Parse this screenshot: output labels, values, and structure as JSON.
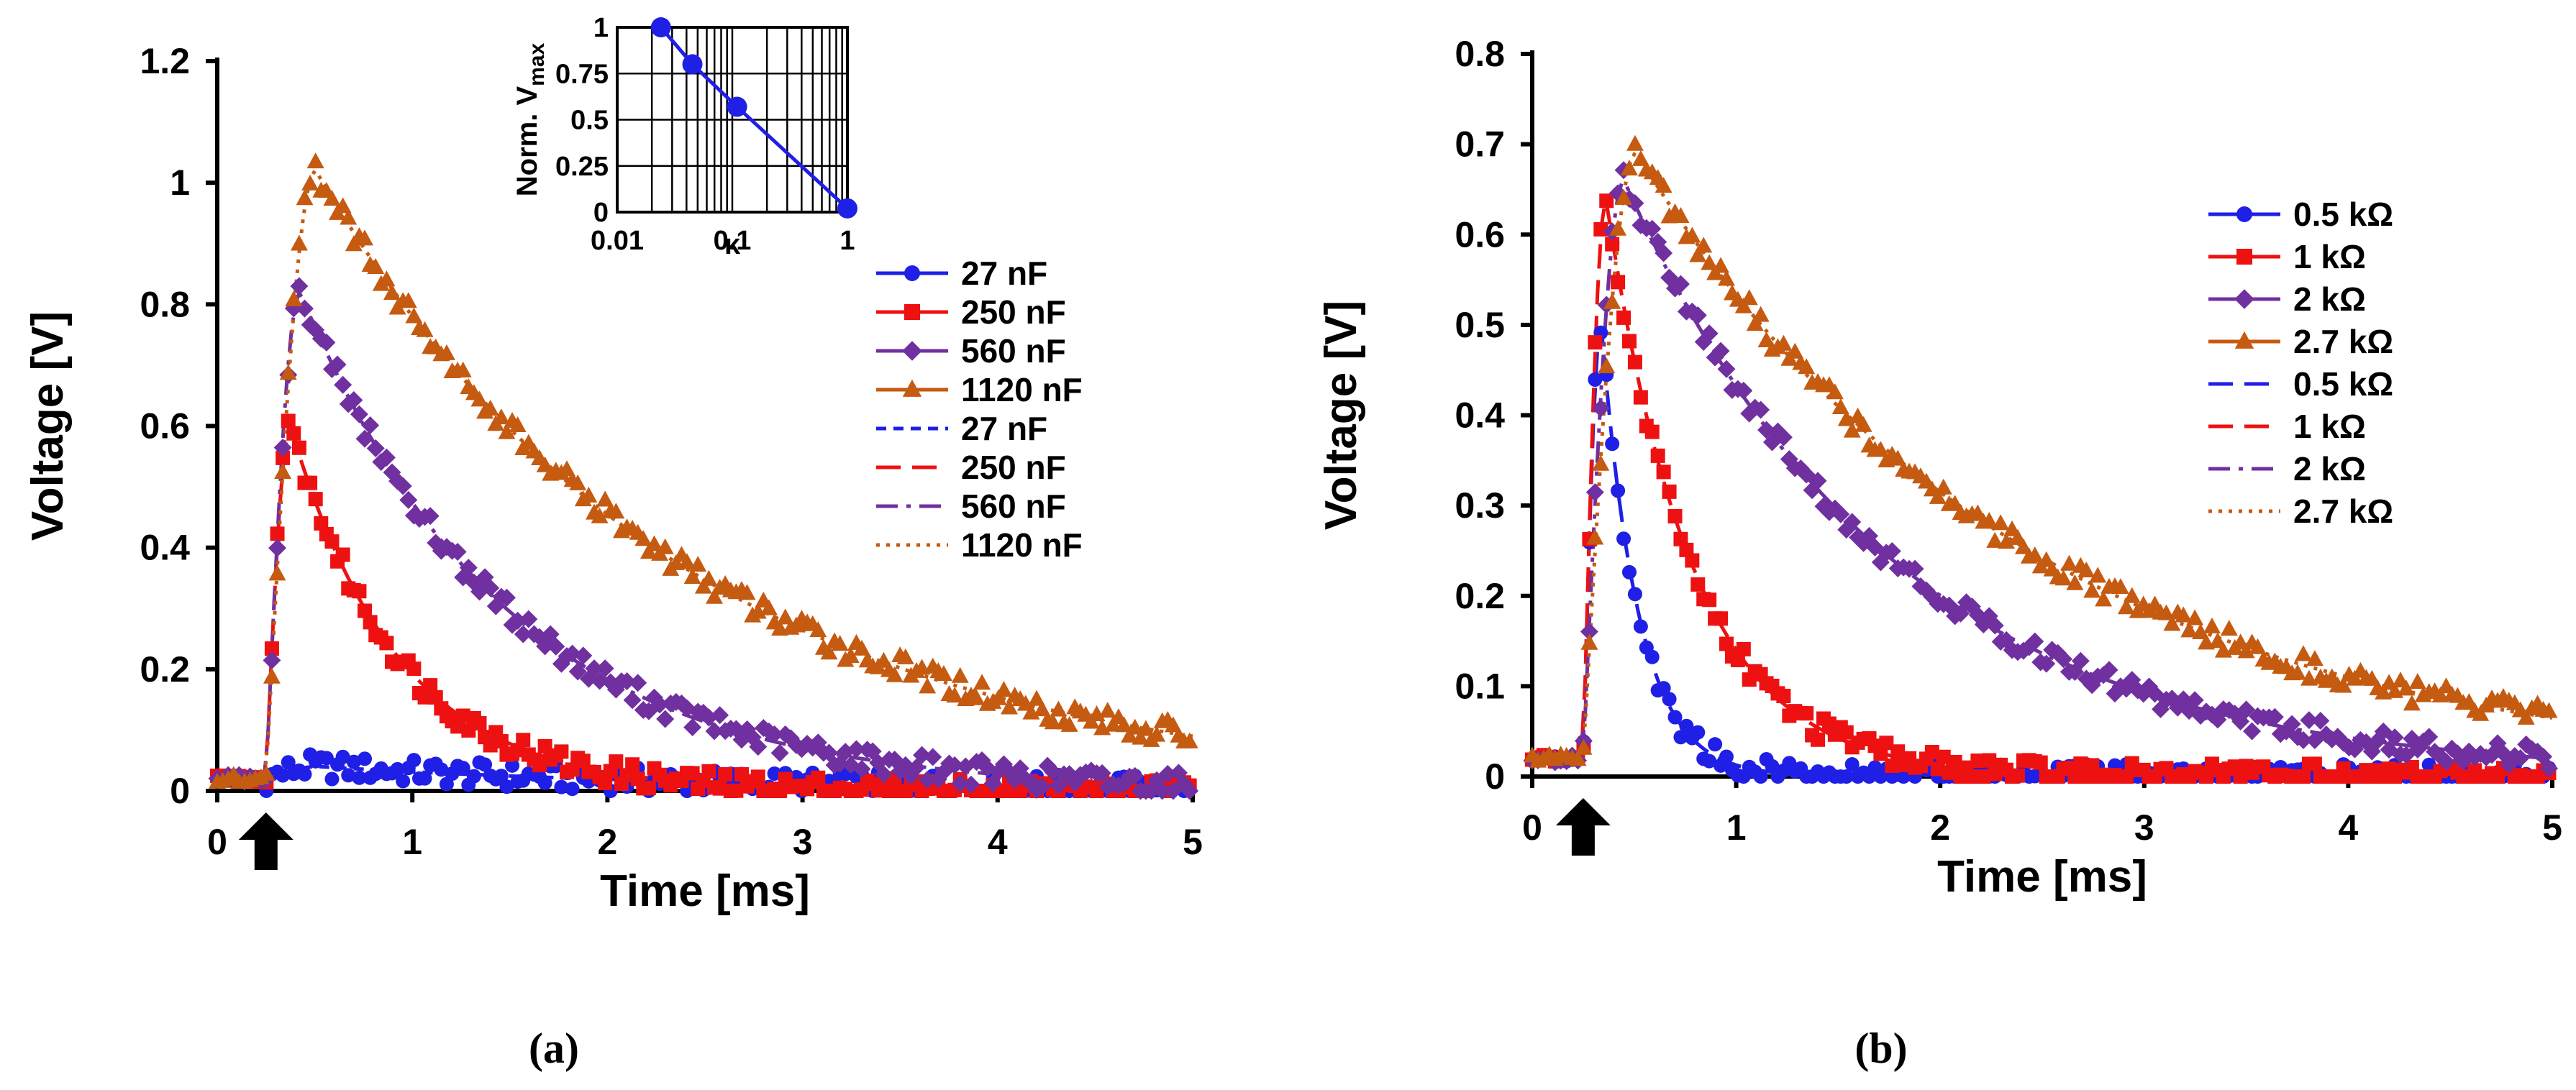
{
  "chart_data": [
    {
      "panel_label": "(a)",
      "type": "line",
      "xlabel": "Time [ms]",
      "ylabel": "Voltage [V]",
      "xlim": [
        0,
        5
      ],
      "ylim": [
        0,
        1.2
      ],
      "xticks": [
        "0",
        "1",
        "2",
        "3",
        "4",
        "5"
      ],
      "yticks": [
        "0",
        "0.2",
        "0.4",
        "0.6",
        "0.8",
        "1",
        "1.2"
      ],
      "trigger_time": 0.25,
      "legend_position": "right",
      "series": [
        {
          "name": "27 nF",
          "kind": "measured",
          "marker": "circle",
          "color": "#1f1fe6",
          "peak": 0.04,
          "tau": 2.0
        },
        {
          "name": "250 nF",
          "kind": "measured",
          "marker": "square",
          "color": "#ee1111",
          "peak": 0.6,
          "tau": 0.55
        },
        {
          "name": "560 nF",
          "kind": "measured",
          "marker": "diamond",
          "color": "#7030a0",
          "peak": 0.82,
          "tau": 1.05
        },
        {
          "name": "1120 nF",
          "kind": "measured",
          "marker": "triangle",
          "color": "#c55a11",
          "peak": 1.02,
          "tau": 1.85
        },
        {
          "name": "27 nF",
          "kind": "simulated",
          "dash": "short",
          "color": "#1f1fe6",
          "peak": 0.04,
          "tau": 2.0
        },
        {
          "name": "250 nF",
          "kind": "simulated",
          "dash": "long",
          "color": "#ee1111",
          "peak": 0.6,
          "tau": 0.55
        },
        {
          "name": "560 nF",
          "kind": "simulated",
          "dash": "dashdot",
          "color": "#7030a0",
          "peak": 0.82,
          "tau": 1.05
        },
        {
          "name": "1120 nF",
          "kind": "simulated",
          "dash": "dot",
          "color": "#c55a11",
          "peak": 1.02,
          "tau": 1.85
        }
      ],
      "inset": {
        "type": "line",
        "xscale": "log",
        "xlabel": "κ",
        "ylabel_main": "Norm. V",
        "ylabel_sub": "max",
        "xlim": [
          0.01,
          1
        ],
        "ylim": [
          0,
          1
        ],
        "xticks": [
          "0.01",
          "0.1",
          "1"
        ],
        "yticks": [
          "0",
          "0.25",
          "0.5",
          "0.75",
          "1"
        ],
        "color": "#1f1fe6",
        "x": [
          0.024,
          0.045,
          0.11,
          1.0
        ],
        "y": [
          1.0,
          0.8,
          0.57,
          0.02
        ]
      }
    },
    {
      "panel_label": "(b)",
      "type": "line",
      "xlabel": "Time  [ms]",
      "ylabel": "Voltage [V]",
      "xlim": [
        0,
        5
      ],
      "ylim": [
        0,
        0.8
      ],
      "xticks": [
        "0",
        "1",
        "2",
        "3",
        "4",
        "5"
      ],
      "yticks": [
        "0",
        "0.1",
        "0.2",
        "0.3",
        "0.4",
        "0.5",
        "0.6",
        "0.7",
        "0.8"
      ],
      "trigger_time": 0.25,
      "legend_position": "right",
      "series": [
        {
          "name": "0.5 kΩ",
          "kind": "measured",
          "marker": "circle",
          "color": "#1f1fe6",
          "peak": 0.5,
          "tau": 0.18
        },
        {
          "name": "1 kΩ",
          "kind": "measured",
          "marker": "square",
          "color": "#ee1111",
          "peak": 0.64,
          "tau": 0.42
        },
        {
          "name": "2 kΩ",
          "kind": "measured",
          "marker": "diamond",
          "color": "#7030a0",
          "peak": 0.66,
          "tau": 1.3
        },
        {
          "name": "2.7 kΩ",
          "kind": "measured",
          "marker": "triangle",
          "color": "#c55a11",
          "peak": 0.69,
          "tau": 1.9
        },
        {
          "name": "0.5 kΩ",
          "kind": "simulated",
          "dash": "long",
          "color": "#1f1fe6",
          "peak": 0.5,
          "tau": 0.18
        },
        {
          "name": "1 kΩ",
          "kind": "simulated",
          "dash": "long",
          "color": "#ee1111",
          "peak": 0.64,
          "tau": 0.42
        },
        {
          "name": "2 kΩ",
          "kind": "simulated",
          "dash": "dashdot",
          "color": "#7030a0",
          "peak": 0.66,
          "tau": 1.3
        },
        {
          "name": "2.7 kΩ",
          "kind": "simulated",
          "dash": "dot",
          "color": "#c55a11",
          "peak": 0.69,
          "tau": 1.9
        }
      ]
    }
  ]
}
